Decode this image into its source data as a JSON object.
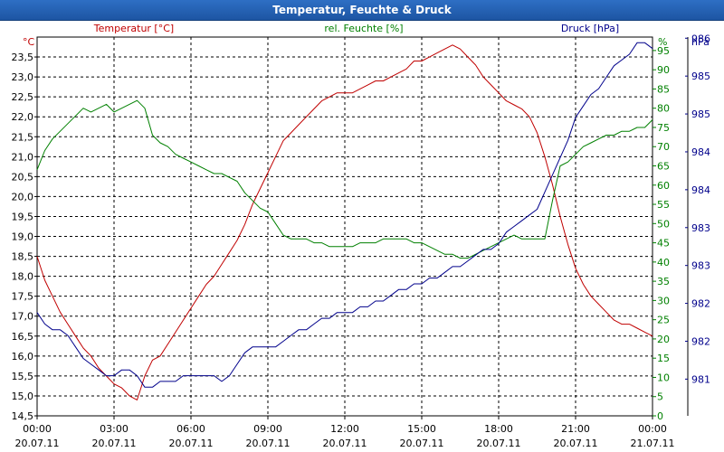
{
  "window": {
    "title": "Temperatur, Feuchte & Druck"
  },
  "colors": {
    "temperature": "#c00000",
    "humidity": "#008000",
    "pressure": "#00008b",
    "text": "#000000"
  },
  "chart_data": {
    "type": "line",
    "title": "Temperatur, Feuchte & Druck",
    "x_ticks": [
      {
        "time": "00:00",
        "date": "20.07.11"
      },
      {
        "time": "03:00",
        "date": "20.07.11"
      },
      {
        "time": "06:00",
        "date": "20.07.11"
      },
      {
        "time": "09:00",
        "date": "20.07.11"
      },
      {
        "time": "12:00",
        "date": "20.07.11"
      },
      {
        "time": "15:00",
        "date": "20.07.11"
      },
      {
        "time": "18:00",
        "date": "20.07.11"
      },
      {
        "time": "21:00",
        "date": "20.07.11"
      },
      {
        "time": "00:00",
        "date": "21.07.11"
      }
    ],
    "x_range_hours": [
      0,
      24
    ],
    "axes": {
      "temperature": {
        "label": "Temperatur [°C]",
        "unit": "°C",
        "range": [
          14.5,
          24.0
        ],
        "ticks": [
          "14,5",
          "15,0",
          "15,5",
          "16,0",
          "16,5",
          "17,0",
          "17,5",
          "18,0",
          "18,5",
          "19,0",
          "19,5",
          "20,0",
          "20,5",
          "21,0",
          "21,5",
          "22,0",
          "22,5",
          "23,0",
          "23,5"
        ]
      },
      "humidity": {
        "label": "rel. Feuchte [%]",
        "unit": "%",
        "range": [
          0,
          98.5
        ],
        "ticks": [
          "0",
          "5",
          "10",
          "15",
          "20",
          "25",
          "30",
          "35",
          "40",
          "45",
          "50",
          "55",
          "60",
          "65",
          "70",
          "75",
          "80",
          "85",
          "90",
          "95"
        ]
      },
      "pressure": {
        "label": "Druck [hPa]",
        "unit": "hPa",
        "range": [
          980.3,
          986.9
        ],
        "ticks": [
          {
            "label": "981",
            "value": 980.94
          },
          {
            "label": "982",
            "value": 981.6
          },
          {
            "label": "982",
            "value": 982.26
          },
          {
            "label": "983",
            "value": 982.92
          },
          {
            "label": "983",
            "value": 983.58
          },
          {
            "label": "984",
            "value": 984.24
          },
          {
            "label": "984",
            "value": 984.9
          },
          {
            "label": "985",
            "value": 985.56
          },
          {
            "label": "985",
            "value": 986.22
          },
          {
            "label": "986",
            "value": 986.88
          }
        ]
      }
    },
    "series": [
      {
        "name": "Temperatur",
        "axis": "temperature",
        "x": [
          0,
          0.3,
          0.6,
          0.9,
          1.2,
          1.5,
          1.8,
          2.1,
          2.4,
          2.7,
          3.0,
          3.3,
          3.6,
          3.9,
          4.2,
          4.5,
          4.8,
          5.1,
          5.4,
          5.7,
          6.0,
          6.3,
          6.6,
          6.9,
          7.2,
          7.5,
          7.8,
          8.1,
          8.4,
          8.7,
          9.0,
          9.3,
          9.6,
          9.9,
          10.2,
          10.5,
          10.8,
          11.1,
          11.4,
          11.7,
          12.0,
          12.3,
          12.6,
          12.9,
          13.2,
          13.5,
          13.8,
          14.1,
          14.4,
          14.7,
          15.0,
          15.3,
          15.6,
          15.9,
          16.2,
          16.5,
          16.8,
          17.1,
          17.4,
          17.7,
          18.0,
          18.3,
          18.6,
          18.9,
          19.2,
          19.5,
          19.8,
          20.1,
          20.4,
          20.7,
          21.0,
          21.3,
          21.6,
          21.9,
          22.2,
          22.5,
          22.8,
          23.1,
          23.4,
          23.7,
          24.0
        ],
        "values": [
          18.5,
          17.9,
          17.5,
          17.1,
          16.8,
          16.5,
          16.2,
          16.0,
          15.7,
          15.5,
          15.3,
          15.2,
          15.0,
          14.9,
          15.5,
          15.9,
          16.0,
          16.3,
          16.6,
          16.9,
          17.2,
          17.5,
          17.8,
          18.0,
          18.3,
          18.6,
          18.9,
          19.3,
          19.8,
          20.2,
          20.6,
          21.0,
          21.4,
          21.6,
          21.8,
          22.0,
          22.2,
          22.4,
          22.5,
          22.6,
          22.6,
          22.6,
          22.7,
          22.8,
          22.9,
          22.9,
          23.0,
          23.1,
          23.2,
          23.4,
          23.4,
          23.5,
          23.6,
          23.7,
          23.8,
          23.7,
          23.5,
          23.3,
          23.0,
          22.8,
          22.6,
          22.4,
          22.3,
          22.2,
          22.0,
          21.6,
          21.0,
          20.3,
          19.5,
          18.8,
          18.2,
          17.8,
          17.5,
          17.3,
          17.1,
          16.9,
          16.8,
          16.8,
          16.7,
          16.6,
          16.5
        ]
      },
      {
        "name": "rel. Feuchte",
        "axis": "humidity",
        "x": [
          0,
          0.3,
          0.6,
          0.9,
          1.2,
          1.5,
          1.8,
          2.1,
          2.4,
          2.7,
          3.0,
          3.3,
          3.6,
          3.9,
          4.2,
          4.5,
          4.8,
          5.1,
          5.4,
          5.7,
          6.0,
          6.3,
          6.6,
          6.9,
          7.2,
          7.5,
          7.8,
          8.1,
          8.4,
          8.7,
          9.0,
          9.3,
          9.6,
          9.9,
          10.2,
          10.5,
          10.8,
          11.1,
          11.4,
          11.7,
          12.0,
          12.3,
          12.6,
          12.9,
          13.2,
          13.5,
          13.8,
          14.1,
          14.4,
          14.7,
          15.0,
          15.3,
          15.6,
          15.9,
          16.2,
          16.5,
          16.8,
          17.1,
          17.4,
          17.7,
          18.0,
          18.3,
          18.6,
          18.9,
          19.2,
          19.5,
          19.8,
          20.1,
          20.4,
          20.7,
          21.0,
          21.3,
          21.6,
          21.9,
          22.2,
          22.5,
          22.8,
          23.1,
          23.4,
          23.7,
          24.0
        ],
        "values": [
          64,
          69,
          72,
          74,
          76,
          78,
          80,
          79,
          80,
          81,
          79,
          80,
          81,
          82,
          80,
          73,
          71,
          70,
          68,
          67,
          66,
          65,
          64,
          63,
          63,
          62,
          61,
          58,
          56,
          54,
          53,
          50,
          47,
          46,
          46,
          46,
          45,
          45,
          44,
          44,
          44,
          44,
          45,
          45,
          45,
          46,
          46,
          46,
          46,
          45,
          45,
          44,
          43,
          42,
          42,
          41,
          41,
          42,
          43,
          44,
          45,
          46,
          47,
          46,
          46,
          46,
          46,
          56,
          65,
          66,
          68,
          70,
          71,
          72,
          73,
          73,
          74,
          74,
          75,
          75,
          77
        ]
      },
      {
        "name": "Druck",
        "axis": "pressure",
        "x": [
          0,
          0.3,
          0.6,
          0.9,
          1.2,
          1.5,
          1.8,
          2.1,
          2.4,
          2.7,
          3.0,
          3.3,
          3.6,
          3.9,
          4.2,
          4.5,
          4.8,
          5.1,
          5.4,
          5.7,
          6.0,
          6.3,
          6.6,
          6.9,
          7.2,
          7.5,
          7.8,
          8.1,
          8.4,
          8.7,
          9.0,
          9.3,
          9.6,
          9.9,
          10.2,
          10.5,
          10.8,
          11.1,
          11.4,
          11.7,
          12.0,
          12.3,
          12.6,
          12.9,
          13.2,
          13.5,
          13.8,
          14.1,
          14.4,
          14.7,
          15.0,
          15.3,
          15.6,
          15.9,
          16.2,
          16.5,
          16.8,
          17.1,
          17.4,
          17.7,
          18.0,
          18.3,
          18.6,
          18.9,
          19.2,
          19.5,
          19.8,
          20.1,
          20.4,
          20.7,
          21.0,
          21.3,
          21.6,
          21.9,
          22.2,
          22.5,
          22.8,
          23.1,
          23.4,
          23.7,
          24.0
        ],
        "values": [
          982.1,
          981.9,
          981.8,
          981.8,
          981.7,
          981.5,
          981.3,
          981.2,
          981.1,
          981.0,
          981.0,
          981.1,
          981.1,
          981.0,
          980.8,
          980.8,
          980.9,
          980.9,
          980.9,
          981.0,
          981.0,
          981.0,
          981.0,
          981.0,
          980.9,
          981.0,
          981.2,
          981.4,
          981.5,
          981.5,
          981.5,
          981.5,
          981.6,
          981.7,
          981.8,
          981.8,
          981.9,
          982.0,
          982.0,
          982.1,
          982.1,
          982.1,
          982.2,
          982.2,
          982.3,
          982.3,
          982.4,
          982.5,
          982.5,
          982.6,
          982.6,
          982.7,
          982.7,
          982.8,
          982.9,
          982.9,
          983.0,
          983.1,
          983.2,
          983.2,
          983.3,
          983.5,
          983.6,
          983.7,
          983.8,
          983.9,
          984.2,
          984.5,
          984.8,
          985.1,
          985.5,
          985.7,
          985.9,
          986.0,
          986.2,
          986.4,
          986.5,
          986.6,
          986.8,
          986.8,
          986.7
        ]
      }
    ]
  }
}
